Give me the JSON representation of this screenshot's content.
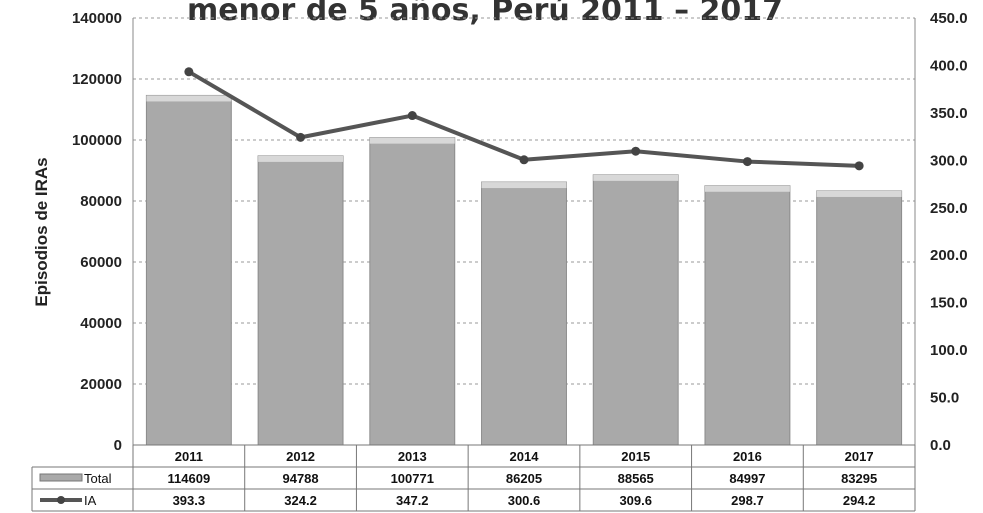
{
  "chart_data": {
    "type": "bar+line",
    "title": "menor de 5 años, Perú 2011 – 2017",
    "categories": [
      "2011",
      "2012",
      "2013",
      "2014",
      "2015",
      "2016",
      "2017"
    ],
    "series": [
      {
        "name": "Total",
        "axis": "left",
        "type": "bar",
        "color": "#a9a9a9",
        "values": [
          114609,
          94788,
          100771,
          86205,
          88565,
          84997,
          83295
        ]
      },
      {
        "name": "IA",
        "axis": "right",
        "type": "line",
        "color": "#555555",
        "values": [
          393.3,
          324.2,
          347.2,
          300.6,
          309.6,
          298.7,
          294.2
        ]
      }
    ],
    "ylabel": "Episodios de IRAs",
    "ylim": [
      0,
      140000
    ],
    "y_ticks": [
      0,
      20000,
      40000,
      60000,
      80000,
      100000,
      120000,
      140000
    ],
    "y2lim": [
      0,
      450
    ],
    "y2_ticks": [
      "0.0",
      "50.0",
      "100.0",
      "150.0",
      "200.0",
      "250.0",
      "300.0",
      "350.0",
      "400.0",
      "450.0"
    ],
    "data_table": {
      "rows": [
        {
          "label": "Total",
          "values": [
            "114609",
            "94788",
            "100771",
            "86205",
            "88565",
            "84997",
            "83295"
          ]
        },
        {
          "label": "IA",
          "values": [
            "393.3",
            "324.2",
            "347.2",
            "300.6",
            "309.6",
            "298.7",
            "294.2"
          ]
        }
      ]
    },
    "grid": true
  }
}
